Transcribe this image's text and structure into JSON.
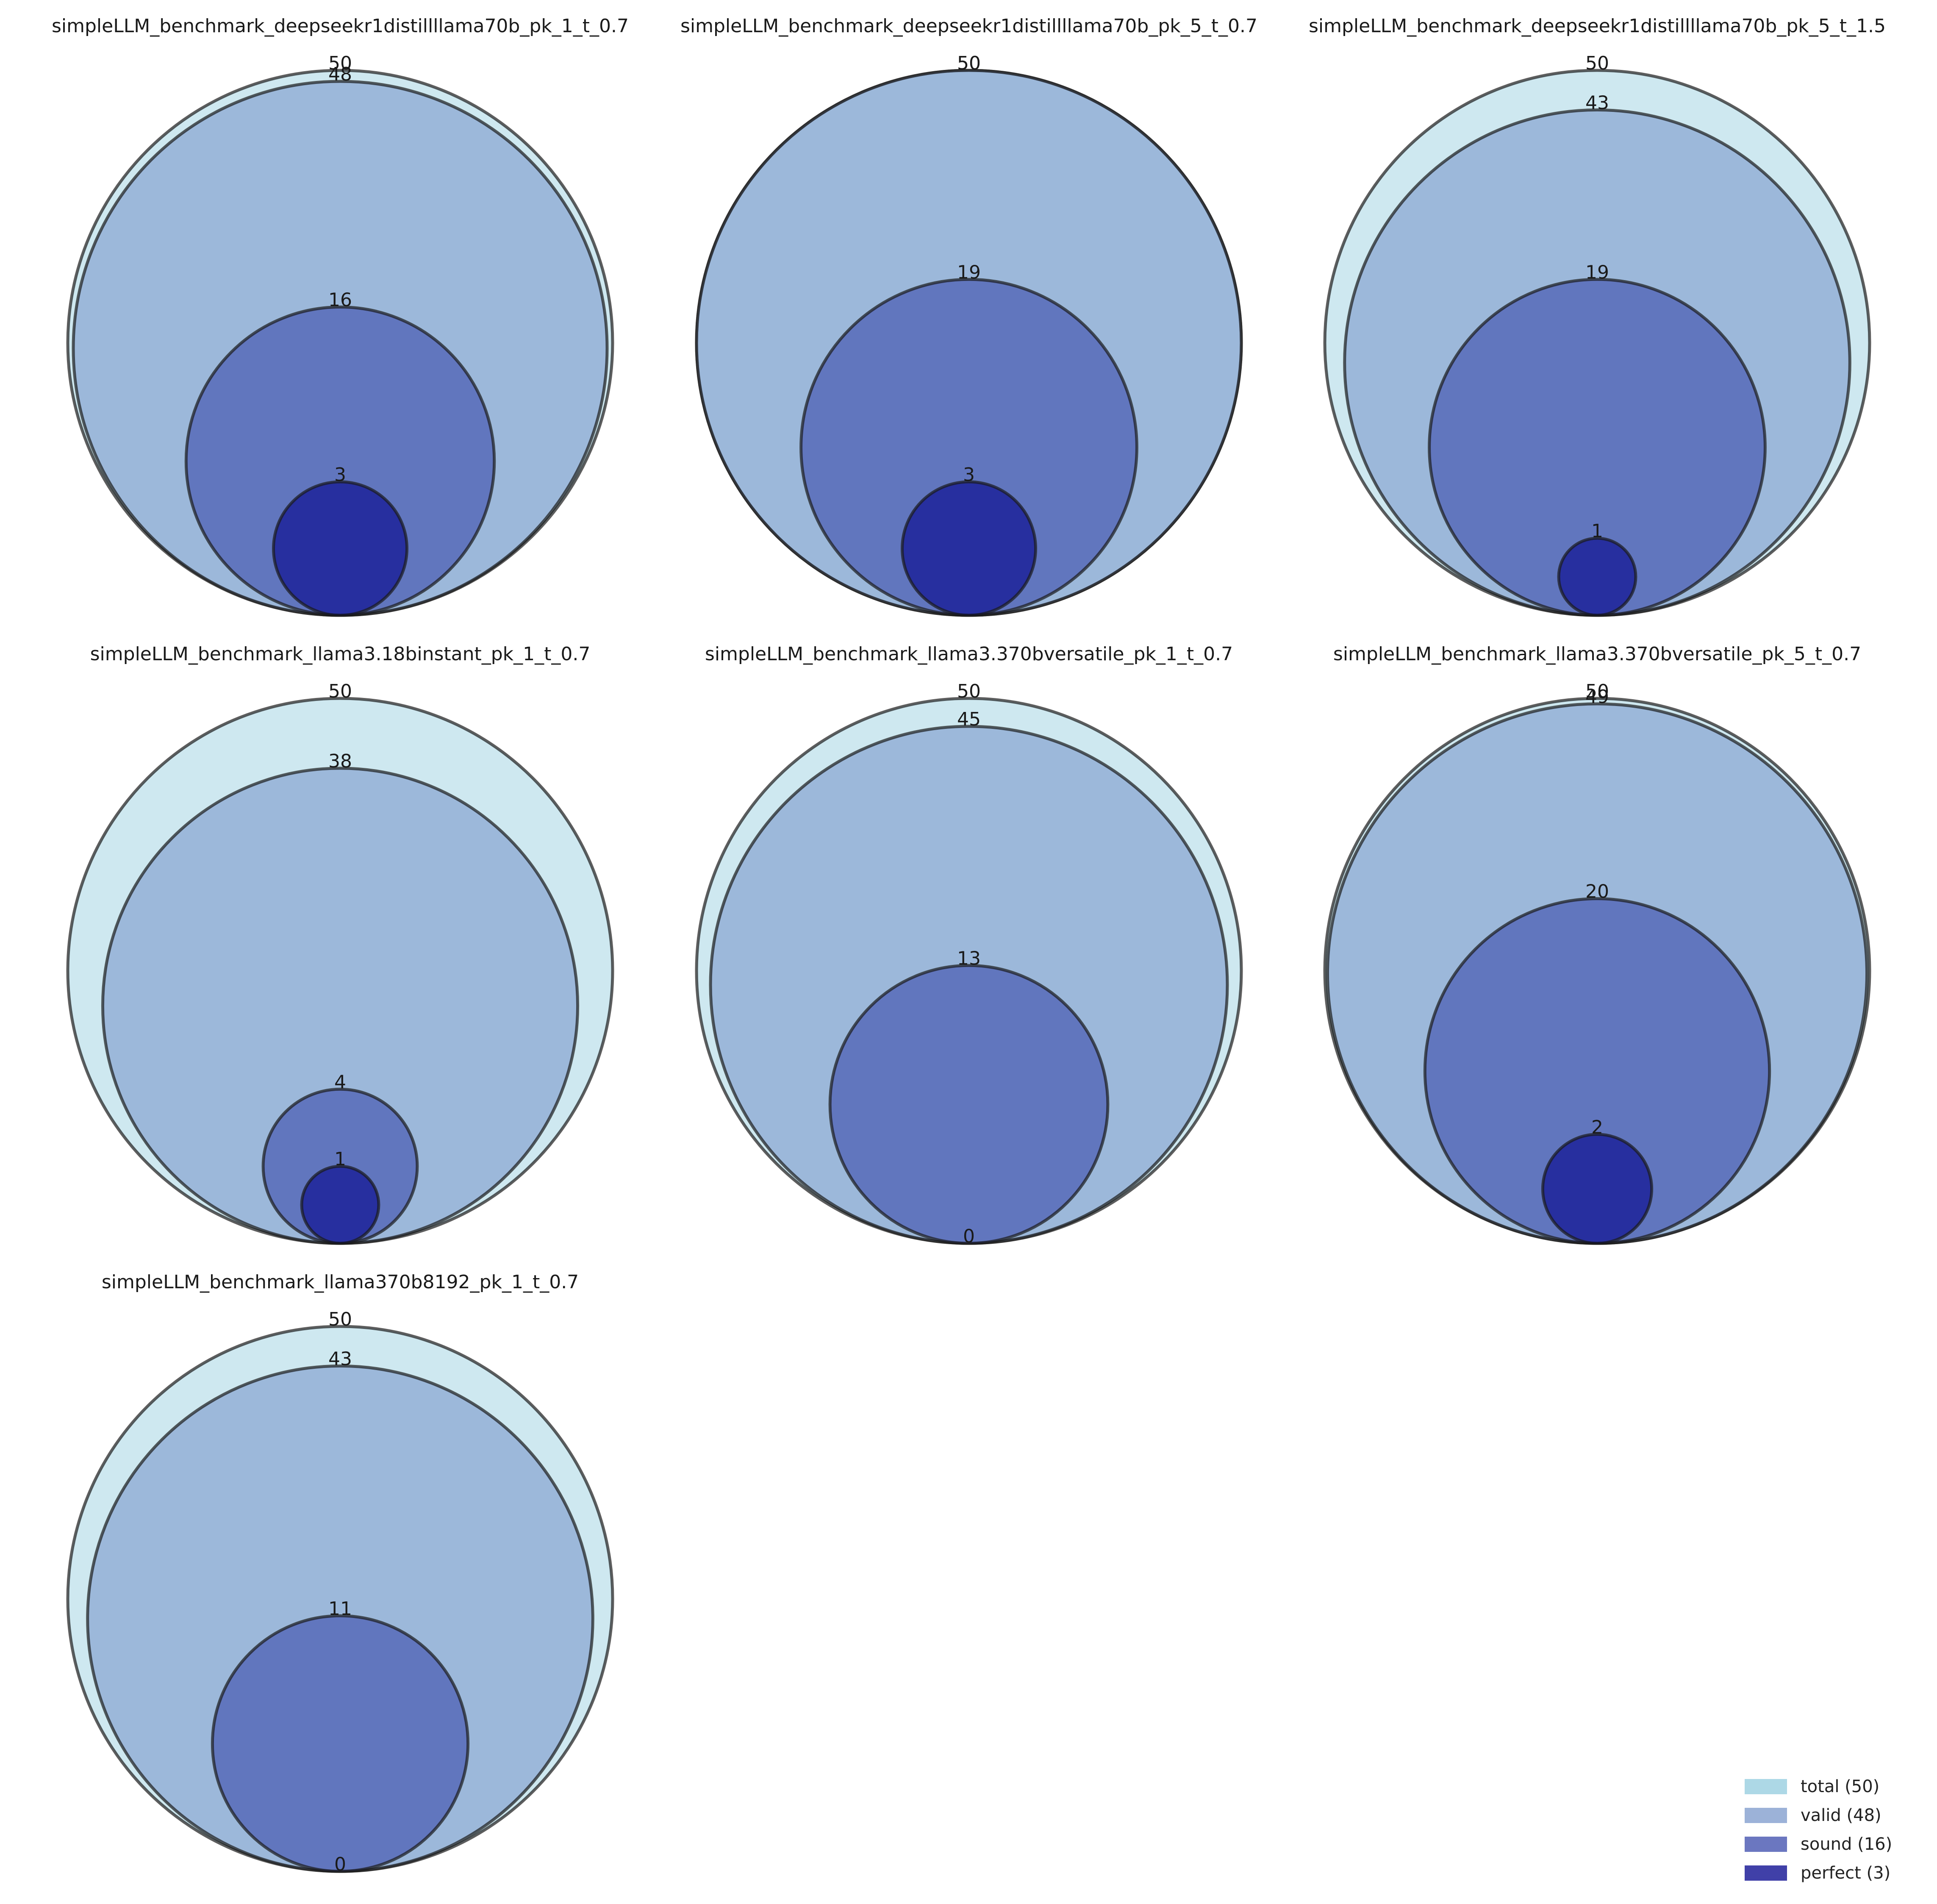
{
  "colors": {
    "total": "#add8e6",
    "valid": "#7b98cb",
    "sound": "#3a4aab",
    "perfect": "#00008b",
    "outline": "#1a1a1a"
  },
  "legend": [
    {
      "key": "total",
      "label": "total (50)"
    },
    {
      "key": "valid",
      "label": "valid (48)"
    },
    {
      "key": "sound",
      "label": "sound (16)"
    },
    {
      "key": "perfect",
      "label": "perfect (3)"
    }
  ],
  "chart_data": [
    {
      "type": "nested-circles",
      "title": "simpleLLM_benchmark_deepseekr1distillllama70b_pk_1_t_0.7",
      "values": {
        "total": 50,
        "valid": 48,
        "sound": 16,
        "perfect": 3
      }
    },
    {
      "type": "nested-circles",
      "title": "simpleLLM_benchmark_deepseekr1distillllama70b_pk_5_t_0.7",
      "values": {
        "total": 50,
        "valid": 50,
        "sound": 19,
        "perfect": 3
      }
    },
    {
      "type": "nested-circles",
      "title": "simpleLLM_benchmark_deepseekr1distillllama70b_pk_5_t_1.5",
      "values": {
        "total": 50,
        "valid": 43,
        "sound": 19,
        "perfect": 1
      }
    },
    {
      "type": "nested-circles",
      "title": "simpleLLM_benchmark_llama3.18binstant_pk_1_t_0.7",
      "values": {
        "total": 50,
        "valid": 38,
        "sound": 4,
        "perfect": 1
      }
    },
    {
      "type": "nested-circles",
      "title": "simpleLLM_benchmark_llama3.370bversatile_pk_1_t_0.7",
      "values": {
        "total": 50,
        "valid": 45,
        "sound": 13,
        "perfect": 0
      }
    },
    {
      "type": "nested-circles",
      "title": "simpleLLM_benchmark_llama3.370bversatile_pk_5_t_0.7",
      "values": {
        "total": 50,
        "valid": 49,
        "sound": 20,
        "perfect": 2
      }
    },
    {
      "type": "nested-circles",
      "title": "simpleLLM_benchmark_llama370b8192_pk_1_t_0.7",
      "values": {
        "total": 50,
        "valid": 43,
        "sound": 11,
        "perfect": 0
      }
    }
  ]
}
